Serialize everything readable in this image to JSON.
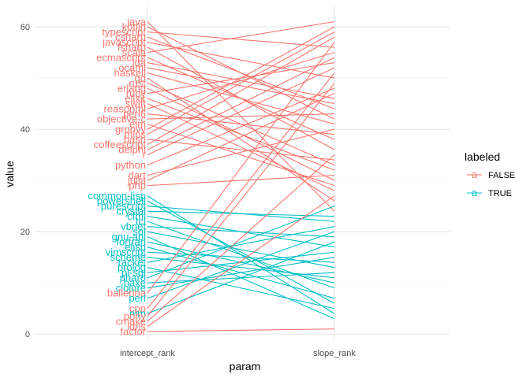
{
  "chart_data": {
    "type": "line",
    "title": "",
    "xlabel": "param",
    "ylabel": "value",
    "categories": [
      "intercept_rank",
      "slope_rank"
    ],
    "ylim": [
      -1.5,
      64
    ],
    "yticks": [
      0,
      20,
      40,
      60
    ],
    "grid": true,
    "legend": {
      "title": "labeled",
      "placement": "right",
      "entries": [
        {
          "label": "FALSE",
          "color": "#F8766D"
        },
        {
          "label": "TRUE",
          "color": "#00BFC4"
        }
      ]
    },
    "series": [
      {
        "lang": "java",
        "labeled": false,
        "values": [
          61,
          24
        ]
      },
      {
        "lang": "kotlin",
        "labeled": false,
        "values": [
          60,
          42
        ]
      },
      {
        "lang": "typescript",
        "labeled": false,
        "values": [
          59,
          56
        ]
      },
      {
        "lang": "csharp",
        "labeled": false,
        "values": [
          58,
          44
        ]
      },
      {
        "lang": "javascript",
        "labeled": false,
        "values": [
          57,
          50
        ]
      },
      {
        "lang": "fsharp",
        "labeled": false,
        "values": [
          56,
          36
        ]
      },
      {
        "lang": "scala",
        "labeled": false,
        "values": [
          55,
          61
        ]
      },
      {
        "lang": "ecmascript",
        "labeled": false,
        "values": [
          54,
          38
        ]
      },
      {
        "lang": "lua",
        "labeled": false,
        "values": [
          53,
          46
        ]
      },
      {
        "lang": "ocaml",
        "labeled": false,
        "values": [
          52,
          45
        ]
      },
      {
        "lang": "haskell",
        "labeled": false,
        "values": [
          51,
          41
        ]
      },
      {
        "lang": "go",
        "labeled": false,
        "values": [
          50,
          26
        ]
      },
      {
        "lang": "rust",
        "labeled": false,
        "values": [
          49,
          33
        ]
      },
      {
        "lang": "erlang",
        "labeled": false,
        "values": [
          48,
          30
        ]
      },
      {
        "lang": "ruby",
        "labeled": false,
        "values": [
          47,
          53
        ]
      },
      {
        "lang": "elixir",
        "labeled": false,
        "values": [
          46,
          32
        ]
      },
      {
        "lang": "swift",
        "labeled": false,
        "values": [
          45,
          28
        ]
      },
      {
        "lang": "reasonml",
        "labeled": false,
        "values": [
          44,
          55
        ]
      },
      {
        "lang": "perl6",
        "labeled": false,
        "values": [
          43,
          39
        ]
      },
      {
        "lang": "objective-c",
        "labeled": false,
        "values": [
          42,
          43
        ]
      },
      {
        "lang": "elm",
        "labeled": false,
        "values": [
          41,
          29
        ]
      },
      {
        "lang": "groovy",
        "labeled": false,
        "values": [
          40,
          60
        ]
      },
      {
        "lang": "mips",
        "labeled": false,
        "values": [
          39,
          59
        ]
      },
      {
        "lang": "bash",
        "labeled": false,
        "values": [
          38,
          34
        ]
      },
      {
        "lang": "coffeescript",
        "labeled": false,
        "values": [
          37,
          58
        ]
      },
      {
        "lang": "delphi",
        "labeled": false,
        "values": [
          36,
          54
        ]
      },
      {
        "lang": "r",
        "labeled": false,
        "values": [
          35,
          52
        ]
      },
      {
        "lang": "python",
        "labeled": false,
        "values": [
          33,
          48
        ]
      },
      {
        "lang": "dart",
        "labeled": false,
        "values": [
          31,
          40
        ]
      },
      {
        "lang": "julia",
        "labeled": false,
        "values": [
          30,
          47
        ]
      },
      {
        "lang": "php",
        "labeled": false,
        "values": [
          29,
          31
        ]
      },
      {
        "lang": "common-lisp",
        "labeled": true,
        "values": [
          27,
          4
        ]
      },
      {
        "lang": "powershell",
        "labeled": true,
        "values": [
          26,
          6
        ]
      },
      {
        "lang": "purescript",
        "labeled": true,
        "values": [
          25,
          22
        ]
      },
      {
        "lang": "crystal",
        "labeled": true,
        "values": [
          24,
          23
        ]
      },
      {
        "lang": "cfml",
        "labeled": true,
        "values": [
          23,
          17
        ]
      },
      {
        "lang": "tcl",
        "labeled": true,
        "values": [
          22,
          9
        ]
      },
      {
        "lang": "vbnet",
        "labeled": true,
        "values": [
          21,
          19
        ]
      },
      {
        "lang": "sql",
        "labeled": true,
        "values": [
          20,
          13
        ]
      },
      {
        "lang": "gnu-apl",
        "labeled": true,
        "values": [
          19,
          3
        ]
      },
      {
        "lang": "fortran",
        "labeled": true,
        "values": [
          18,
          10
        ]
      },
      {
        "lang": "elisp",
        "labeled": true,
        "values": [
          17,
          7
        ]
      },
      {
        "lang": "vimscript",
        "labeled": true,
        "values": [
          16,
          14
        ]
      },
      {
        "lang": "scheme",
        "labeled": true,
        "values": [
          15,
          11
        ]
      },
      {
        "lang": "racket",
        "labeled": true,
        "values": [
          14,
          21
        ]
      },
      {
        "lang": "prolog",
        "labeled": true,
        "values": [
          13,
          5
        ]
      },
      {
        "lang": "pl-sql",
        "labeled": true,
        "values": [
          12,
          16
        ]
      },
      {
        "lang": "pharo",
        "labeled": true,
        "values": [
          11,
          25
        ]
      },
      {
        "lang": "haxe",
        "labeled": true,
        "values": [
          10,
          12
        ]
      },
      {
        "lang": "clojure",
        "labeled": true,
        "values": [
          9,
          15
        ]
      },
      {
        "lang": "ballerina",
        "labeled": false,
        "values": [
          8,
          57
        ]
      },
      {
        "lang": "perl",
        "labeled": true,
        "values": [
          7,
          20
        ]
      },
      {
        "lang": "cpp",
        "labeled": false,
        "values": [
          5,
          51
        ]
      },
      {
        "lang": "nim",
        "labeled": true,
        "values": [
          4,
          18
        ]
      },
      {
        "lang": "pony",
        "labeled": false,
        "values": [
          3.5,
          49
        ]
      },
      {
        "lang": "cmake",
        "labeled": false,
        "values": [
          2.5,
          35
        ]
      },
      {
        "lang": "idris",
        "labeled": false,
        "values": [
          1.5,
          27
        ]
      },
      {
        "lang": "factor",
        "labeled": false,
        "values": [
          0.5,
          1
        ]
      }
    ]
  }
}
